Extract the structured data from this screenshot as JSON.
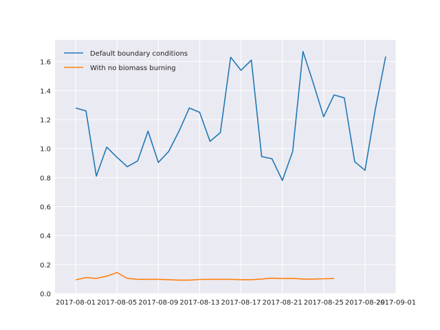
{
  "chart_data": {
    "type": "line",
    "title": "",
    "xlabel": "",
    "ylabel": "",
    "x_ticks": [
      "2017-08-01",
      "2017-08-05",
      "2017-08-09",
      "2017-08-13",
      "2017-08-17",
      "2017-08-21",
      "2017-08-25",
      "2017-08-29",
      "2017-09-01"
    ],
    "y_ticks": [
      "0.0",
      "0.2",
      "0.4",
      "0.6",
      "0.8",
      "1.0",
      "1.2",
      "1.4",
      "1.6"
    ],
    "xlim": [
      "2017-07-30",
      "2017-09-01"
    ],
    "ylim": [
      0,
      1.75
    ],
    "grid": true,
    "legend_position": "top-left",
    "series": [
      {
        "name": "Default boundary conditions",
        "color": "#1f77b4",
        "x": [
          "2017-08-01",
          "2017-08-02",
          "2017-08-03",
          "2017-08-04",
          "2017-08-05",
          "2017-08-06",
          "2017-08-07",
          "2017-08-08",
          "2017-08-09",
          "2017-08-10",
          "2017-08-11",
          "2017-08-12",
          "2017-08-13",
          "2017-08-14",
          "2017-08-15",
          "2017-08-16",
          "2017-08-17",
          "2017-08-18",
          "2017-08-19",
          "2017-08-20",
          "2017-08-21",
          "2017-08-22",
          "2017-08-23",
          "2017-08-24",
          "2017-08-25",
          "2017-08-26",
          "2017-08-27",
          "2017-08-28",
          "2017-08-29",
          "2017-08-30",
          "2017-08-31"
        ],
        "y": [
          1.28,
          1.26,
          0.81,
          1.01,
          0.94,
          0.875,
          0.915,
          1.12,
          0.905,
          0.98,
          1.12,
          1.28,
          1.25,
          1.05,
          1.11,
          1.63,
          1.54,
          1.61,
          0.945,
          0.93,
          0.78,
          0.98,
          1.67,
          1.45,
          1.22,
          1.37,
          1.35,
          0.91,
          0.85,
          1.27,
          1.635
        ]
      },
      {
        "name": "With no biomass burning",
        "color": "#ff7f0e",
        "x": [
          "2017-08-01",
          "2017-08-02",
          "2017-08-03",
          "2017-08-04",
          "2017-08-05",
          "2017-08-06",
          "2017-08-07",
          "2017-08-08",
          "2017-08-09",
          "2017-08-10",
          "2017-08-11",
          "2017-08-12",
          "2017-08-13",
          "2017-08-14",
          "2017-08-15",
          "2017-08-16",
          "2017-08-17",
          "2017-08-18",
          "2017-08-19",
          "2017-08-20",
          "2017-08-21",
          "2017-08-22",
          "2017-08-23",
          "2017-08-24",
          "2017-08-25",
          "2017-08-26"
        ],
        "y": [
          0.095,
          0.11,
          0.105,
          0.12,
          0.145,
          0.105,
          0.098,
          0.098,
          0.098,
          0.096,
          0.093,
          0.093,
          0.097,
          0.098,
          0.098,
          0.098,
          0.096,
          0.096,
          0.1,
          0.106,
          0.104,
          0.105,
          0.1,
          0.1,
          0.102,
          0.104
        ]
      }
    ]
  }
}
